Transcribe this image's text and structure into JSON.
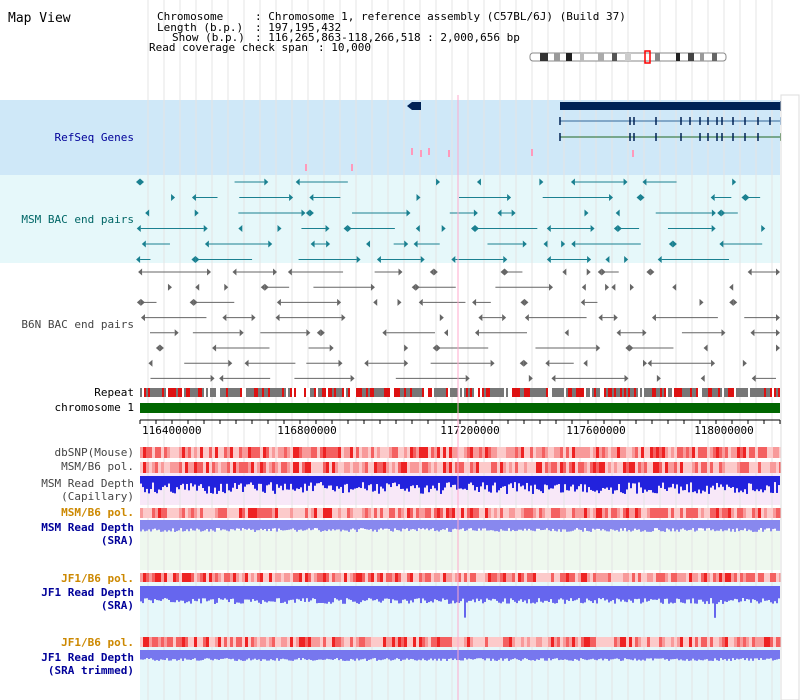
{
  "title": "Map View",
  "header": {
    "chromosome_key": "Chromosome",
    "chromosome_value": ": Chromosome 1, reference assembly (C57BL/6J) (Build 37)",
    "length_key": "Length (b.p.)",
    "length_value": ": 197,195,432",
    "show_key": "Show (b.p.)",
    "show_value": ": 116,265,863-118,266,518 : 2,000,656 bp",
    "span_key": "Read coverage check span",
    "span_value": ": 10,000"
  },
  "axis": {
    "ticks": [
      "116400000",
      "116800000",
      "117200000",
      "117600000",
      "118000000"
    ]
  },
  "tracks": {
    "refseq": "RefSeq Genes",
    "msm_bac": "MSM BAC end pairs",
    "b6n_bac": "B6N BAC end pairs",
    "repeat": "Repeat",
    "chromosome": "chromosome 1",
    "dbsnp": "dbSNP(Mouse)",
    "msm_b6_pol_1": "MSM/B6 pol.",
    "msm_depth_cap_1": "MSM Read Depth",
    "msm_depth_cap_2": "(Capillary)",
    "msm_b6_pol_2": "MSM/B6 pol.",
    "msm_depth_sra_1": "MSM Read Depth",
    "msm_depth_sra_2": "(SRA)",
    "jf1_b6_pol_1": "JF1/B6 pol.",
    "jf1_depth_sra_1": "JF1 Read Depth",
    "jf1_depth_sra_2": "(SRA)",
    "jf1_b6_pol_2": "JF1/B6 pol.",
    "jf1_depth_trim_1": "JF1 Read Depth",
    "jf1_depth_trim_2": "(SRA trimmed)"
  },
  "colors": {
    "refseq_label": "#000099",
    "msm_label": "#006666",
    "b6n_label": "#444444",
    "pol_label": "#cc8800",
    "depth_label": "#000099",
    "refseq_bg": "#cfe8f8",
    "msm_bg": "#e6f8fa",
    "gene_dark": "#002255",
    "chromosome_bar": "#006600",
    "depth_fill": "#2222dd",
    "depth_fill_sra": "#6666ee"
  }
}
